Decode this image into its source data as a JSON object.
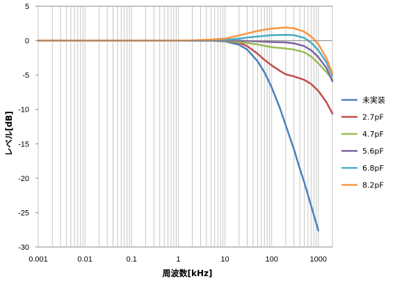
{
  "chart_data": {
    "type": "line",
    "title": "",
    "xlabel": "周波数[kHz]",
    "ylabel": "レベル[dB]",
    "x_scale": "log",
    "xlim": [
      0.001,
      2000
    ],
    "ylim": [
      -30,
      5
    ],
    "x_ticks": [
      0.001,
      0.01,
      0.1,
      1,
      10,
      100,
      1000
    ],
    "x_tick_labels": [
      "0.001",
      "0.01",
      "0.1",
      "1",
      "10",
      "100",
      "1000"
    ],
    "y_ticks": [
      5,
      0,
      -5,
      -10,
      -15,
      -20,
      -25,
      -30
    ],
    "y_tick_labels": [
      "5",
      "0",
      "-5",
      "-10",
      "-15",
      "-20",
      "-25",
      "-30"
    ],
    "grid": {
      "vertical_minor": true,
      "horizontal": false
    },
    "legend_position": "right",
    "series": [
      {
        "name": "未実装",
        "color": "#4f81bd",
        "points": [
          [
            0.001,
            0
          ],
          [
            1,
            0
          ],
          [
            5,
            0
          ],
          [
            10,
            -0.1
          ],
          [
            20,
            -0.6
          ],
          [
            30,
            -1.3
          ],
          [
            50,
            -3.0
          ],
          [
            70,
            -4.6
          ],
          [
            100,
            -6.8
          ],
          [
            150,
            -9.8
          ],
          [
            200,
            -12.3
          ],
          [
            300,
            -15.8
          ],
          [
            400,
            -18.6
          ],
          [
            500,
            -20.6
          ],
          [
            700,
            -24.0
          ],
          [
            1000,
            -27.6
          ]
        ]
      },
      {
        "name": "2.7pF",
        "color": "#c0504d",
        "points": [
          [
            0.001,
            0
          ],
          [
            1,
            0
          ],
          [
            5,
            0
          ],
          [
            10,
            -0.05
          ],
          [
            20,
            -0.3
          ],
          [
            30,
            -0.8
          ],
          [
            50,
            -1.9
          ],
          [
            70,
            -2.8
          ],
          [
            100,
            -3.6
          ],
          [
            150,
            -4.4
          ],
          [
            200,
            -4.9
          ],
          [
            300,
            -5.2
          ],
          [
            500,
            -5.7
          ],
          [
            700,
            -6.3
          ],
          [
            1000,
            -7.3
          ],
          [
            1500,
            -9.0
          ],
          [
            2000,
            -10.6
          ]
        ]
      },
      {
        "name": "4.7pF",
        "color": "#9bbb59",
        "points": [
          [
            0.001,
            0
          ],
          [
            1,
            0
          ],
          [
            5,
            0
          ],
          [
            10,
            -0.05
          ],
          [
            20,
            -0.2
          ],
          [
            30,
            -0.35
          ],
          [
            50,
            -0.55
          ],
          [
            70,
            -0.75
          ],
          [
            100,
            -0.95
          ],
          [
            200,
            -1.15
          ],
          [
            300,
            -1.3
          ],
          [
            500,
            -1.7
          ],
          [
            700,
            -2.3
          ],
          [
            1000,
            -3.3
          ],
          [
            1500,
            -4.6
          ],
          [
            2000,
            -5.6
          ]
        ]
      },
      {
        "name": "5.6pF",
        "color": "#8064a2",
        "points": [
          [
            0.001,
            0
          ],
          [
            1,
            0
          ],
          [
            5,
            0
          ],
          [
            10,
            0
          ],
          [
            20,
            0
          ],
          [
            30,
            -0.05
          ],
          [
            50,
            -0.1
          ],
          [
            70,
            -0.15
          ],
          [
            100,
            -0.2
          ],
          [
            200,
            -0.25
          ],
          [
            300,
            -0.4
          ],
          [
            500,
            -0.8
          ],
          [
            700,
            -1.4
          ],
          [
            1000,
            -2.4
          ],
          [
            1500,
            -4.0
          ],
          [
            2000,
            -5.9
          ]
        ]
      },
      {
        "name": "6.8pF",
        "color": "#4bacc6",
        "points": [
          [
            0.001,
            0
          ],
          [
            1,
            0
          ],
          [
            5,
            0.05
          ],
          [
            10,
            0.1
          ],
          [
            20,
            0.3
          ],
          [
            30,
            0.45
          ],
          [
            50,
            0.6
          ],
          [
            70,
            0.7
          ],
          [
            100,
            0.8
          ],
          [
            200,
            0.85
          ],
          [
            300,
            0.8
          ],
          [
            500,
            0.4
          ],
          [
            700,
            -0.3
          ],
          [
            1000,
            -1.4
          ],
          [
            1500,
            -3.2
          ],
          [
            2000,
            -5.1
          ]
        ]
      },
      {
        "name": "8.2pF",
        "color": "#f79646",
        "points": [
          [
            0.001,
            0
          ],
          [
            1,
            0
          ],
          [
            2,
            0.05
          ],
          [
            5,
            0.15
          ],
          [
            10,
            0.3
          ],
          [
            20,
            0.75
          ],
          [
            30,
            1.05
          ],
          [
            50,
            1.4
          ],
          [
            70,
            1.6
          ],
          [
            100,
            1.75
          ],
          [
            200,
            1.9
          ],
          [
            300,
            1.8
          ],
          [
            500,
            1.3
          ],
          [
            700,
            0.6
          ],
          [
            1000,
            -0.5
          ],
          [
            1500,
            -2.6
          ],
          [
            2000,
            -4.8
          ]
        ]
      }
    ]
  }
}
